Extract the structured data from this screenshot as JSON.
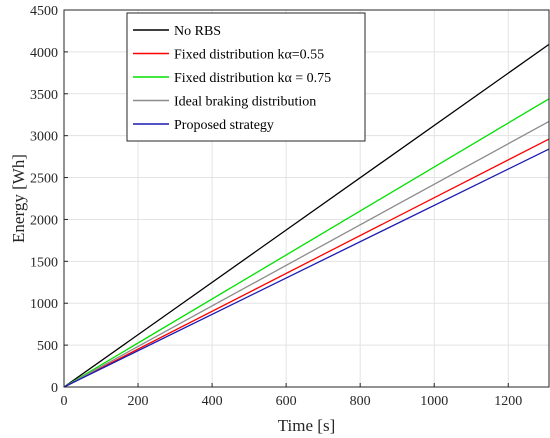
{
  "chart_data": {
    "type": "line",
    "xlabel": "Time [s]",
    "ylabel": "Energy [Wh]",
    "xlim": [
      0,
      1310
    ],
    "ylim": [
      0,
      4500
    ],
    "grid": true,
    "legend_placement": "top-left",
    "x_ticks": [
      "0",
      "200",
      "400",
      "600",
      "800",
      "1000",
      "1200"
    ],
    "y_ticks": [
      "0",
      "500",
      "1000",
      "1500",
      "2000",
      "2500",
      "3000",
      "3500",
      "4000",
      "4500"
    ],
    "x": [
      0,
      1310
    ],
    "series": [
      {
        "name": "No RBS",
        "color": "#000000",
        "values": [
          0,
          4090
        ]
      },
      {
        "name": "Fixed distribution kα=0.55",
        "color": "#ff0000",
        "values": [
          0,
          2960
        ]
      },
      {
        "name": "Fixed distribution kα = 0.75",
        "color": "#00e000",
        "values": [
          0,
          3440
        ]
      },
      {
        "name": "Ideal braking distribution",
        "color": "#8c8c8c",
        "values": [
          0,
          3170
        ]
      },
      {
        "name": "Proposed strategy",
        "color": "#1a1ab4",
        "values": [
          0,
          2840
        ]
      }
    ]
  }
}
